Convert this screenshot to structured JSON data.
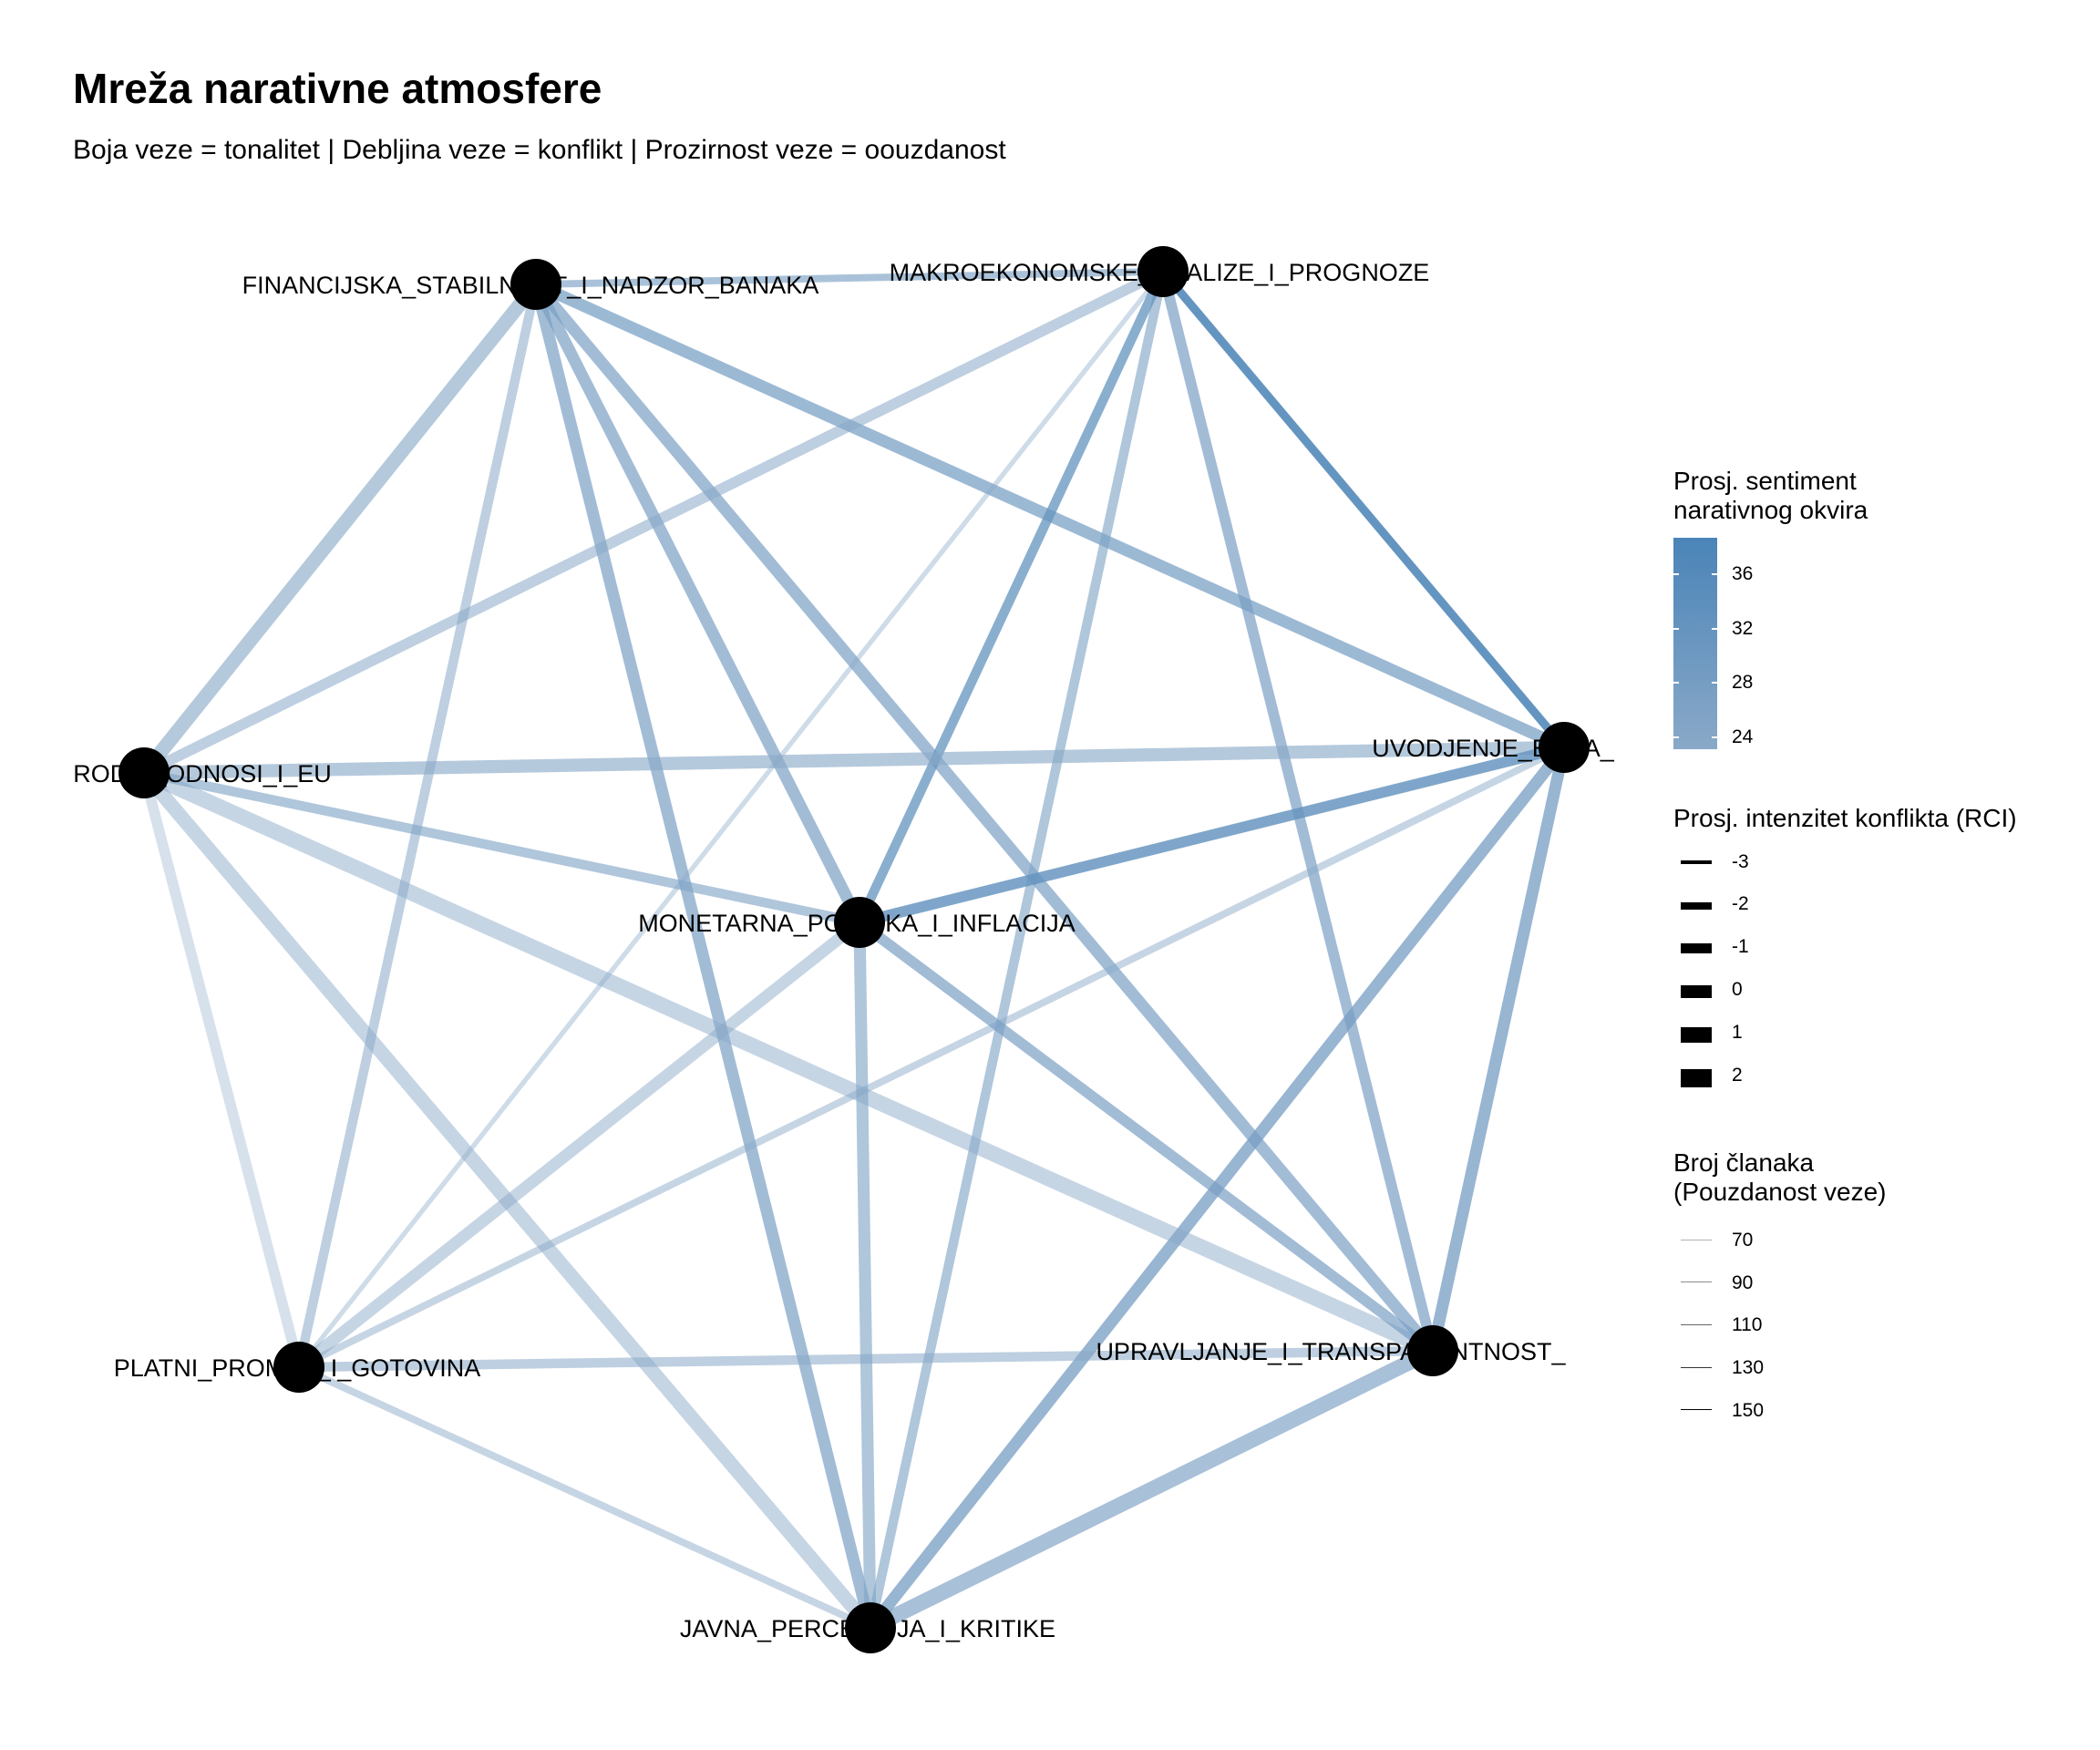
{
  "title": "Mreža narativne atmosfere",
  "subtitle": "Boja veze = tonalitet | Debljina veze = konflikt | Prozirnost veze = oouzdanost",
  "network": {
    "nodes": [
      {
        "id": "fin",
        "label": "FINANCIJSKA_STABILNOST_I_NADZOR_BANAKA"
      },
      {
        "id": "makro",
        "label": "MAKROEKONOMSKE_ANALIZE_I_PROGNOZE"
      },
      {
        "id": "uvod",
        "label": "UVODJENJE_EURA_"
      },
      {
        "id": "upr",
        "label": "UPRAVLJANJE_I_TRANSPARENTNOST_"
      },
      {
        "id": "javna",
        "label": "JAVNA_PERCEPCIJA_I_KRITIKE"
      },
      {
        "id": "platni",
        "label": "PLATNI_PROMET_I_GOTOVINA"
      },
      {
        "id": "rod",
        "label": "RODNI_ODNOSI_I_EU"
      },
      {
        "id": "mon",
        "label": "MONETARNA_POLITIKA_I_INFLACIJA"
      }
    ],
    "edges": [
      {
        "source": "fin",
        "target": "makro",
        "sentiment": 28,
        "conflict": -1.5,
        "articles": 110
      },
      {
        "source": "fin",
        "target": "uvod",
        "sentiment": 30,
        "conflict": 0.5,
        "articles": 120
      },
      {
        "source": "fin",
        "target": "upr",
        "sentiment": 28,
        "conflict": 0.5,
        "articles": 120
      },
      {
        "source": "fin",
        "target": "javna",
        "sentiment": 28,
        "conflict": 0.5,
        "articles": 120
      },
      {
        "source": "fin",
        "target": "platni",
        "sentiment": 24,
        "conflict": -0.5,
        "articles": 100
      },
      {
        "source": "fin",
        "target": "rod",
        "sentiment": 24,
        "conflict": 1.5,
        "articles": 110
      },
      {
        "source": "fin",
        "target": "mon",
        "sentiment": 28,
        "conflict": 0.5,
        "articles": 120
      },
      {
        "source": "makro",
        "target": "uvod",
        "sentiment": 36,
        "conflict": -1,
        "articles": 150
      },
      {
        "source": "makro",
        "target": "upr",
        "sentiment": 28,
        "conflict": 0,
        "articles": 120
      },
      {
        "source": "makro",
        "target": "javna",
        "sentiment": 26,
        "conflict": -0.5,
        "articles": 110
      },
      {
        "source": "makro",
        "target": "platni",
        "sentiment": 24,
        "conflict": -2.5,
        "articles": 80
      },
      {
        "source": "makro",
        "target": "rod",
        "sentiment": 24,
        "conflict": 0,
        "articles": 100
      },
      {
        "source": "makro",
        "target": "mon",
        "sentiment": 32,
        "conflict": -0.5,
        "articles": 130
      },
      {
        "source": "uvod",
        "target": "upr",
        "sentiment": 28,
        "conflict": 0.5,
        "articles": 130
      },
      {
        "source": "uvod",
        "target": "javna",
        "sentiment": 28,
        "conflict": 0.5,
        "articles": 130
      },
      {
        "source": "uvod",
        "target": "platni",
        "sentiment": 24,
        "conflict": -1.5,
        "articles": 90
      },
      {
        "source": "uvod",
        "target": "rod",
        "sentiment": 24,
        "conflict": 1,
        "articles": 110
      },
      {
        "source": "uvod",
        "target": "mon",
        "sentiment": 32,
        "conflict": 0,
        "articles": 140
      },
      {
        "source": "upr",
        "target": "javna",
        "sentiment": 26,
        "conflict": 2,
        "articles": 120
      },
      {
        "source": "upr",
        "target": "platni",
        "sentiment": 24,
        "conflict": -0.5,
        "articles": 100
      },
      {
        "source": "upr",
        "target": "rod",
        "sentiment": 24,
        "conflict": 2,
        "articles": 90
      },
      {
        "source": "upr",
        "target": "mon",
        "sentiment": 28,
        "conflict": 0,
        "articles": 120
      },
      {
        "source": "javna",
        "target": "platni",
        "sentiment": 24,
        "conflict": -1.5,
        "articles": 90
      },
      {
        "source": "javna",
        "target": "rod",
        "sentiment": 24,
        "conflict": 1.5,
        "articles": 90
      },
      {
        "source": "javna",
        "target": "mon",
        "sentiment": 26,
        "conflict": 0.5,
        "articles": 110
      },
      {
        "source": "platni",
        "target": "rod",
        "sentiment": 24,
        "conflict": 0,
        "articles": 70
      },
      {
        "source": "platni",
        "target": "mon",
        "sentiment": 24,
        "conflict": 0.5,
        "articles": 90
      },
      {
        "source": "rod",
        "target": "mon",
        "sentiment": 26,
        "conflict": -0.5,
        "articles": 110
      }
    ]
  },
  "legend": {
    "sentiment": {
      "title": "Prosj. sentiment\nnarativnog okvira",
      "ticks": [
        "36",
        "32",
        "28",
        "24"
      ],
      "colors": {
        "high": "#4a84b8",
        "low": "#8aa9c8"
      }
    },
    "conflict": {
      "title": "Prosj. intenzitet konflikta (RCI)",
      "ticks": [
        "-3",
        "-2",
        "-1",
        "0",
        "1",
        "2"
      ]
    },
    "articles": {
      "title": "Broj članaka\n(Pouzdanost veze)",
      "ticks": [
        "70",
        "90",
        "110",
        "130",
        "150"
      ]
    }
  }
}
